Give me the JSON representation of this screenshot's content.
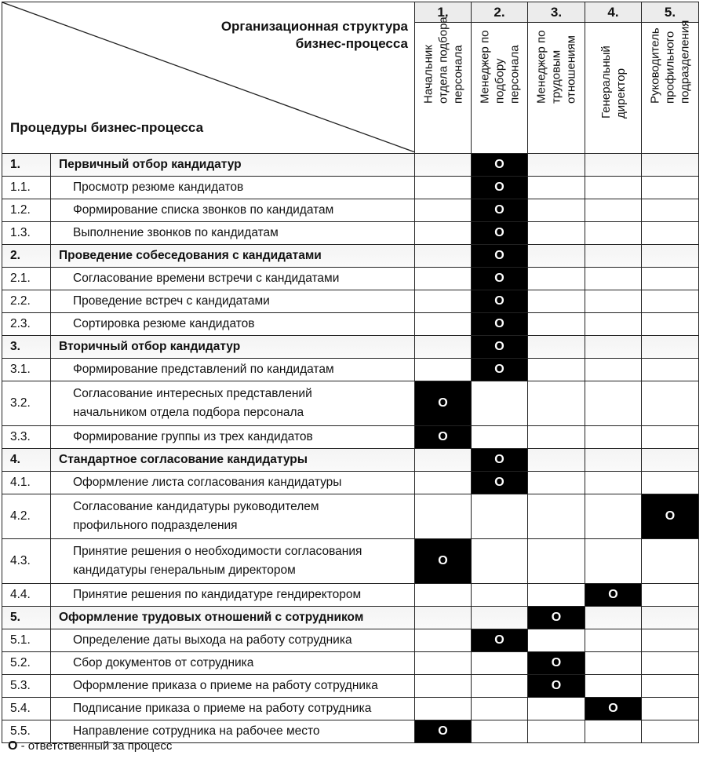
{
  "header": {
    "org_title": "Организационная структура\nбизнес-процесса",
    "proc_title": "Процедуры бизнес-процесса",
    "columns": [
      {
        "num": "1.",
        "name": "Начальник\nотдела подбора\nперсонала"
      },
      {
        "num": "2.",
        "name": "Менеджер по\nподбору\nперсонала"
      },
      {
        "num": "3.",
        "name": "Менеджер по\nтрудовым\nотношениям"
      },
      {
        "num": "4.",
        "name": "Генеральный\nдиректор"
      },
      {
        "num": "5.",
        "name": "Руководитель\nпрофильного\nподразделения"
      }
    ]
  },
  "mark": "O",
  "rows": [
    {
      "num": "1.",
      "text": "Первичный отбор кандидатур",
      "group": true,
      "owner": 2
    },
    {
      "num": "1.1.",
      "text": "Просмотр резюме кандидатов",
      "owner": 2
    },
    {
      "num": "1.2.",
      "text": "Формирование списка звонков по кандидатам",
      "owner": 2
    },
    {
      "num": "1.3.",
      "text": "Выполнение звонков по кандидатам",
      "owner": 2
    },
    {
      "num": "2.",
      "text": "Проведение собеседования с кандидатами",
      "group": true,
      "owner": 2
    },
    {
      "num": "2.1.",
      "text": "Согласование времени встречи с кандидатами",
      "owner": 2
    },
    {
      "num": "2.2.",
      "text": "Проведение встреч с кандидатами",
      "owner": 2
    },
    {
      "num": "2.3.",
      "text": "Сортировка резюме кандидатов",
      "owner": 2
    },
    {
      "num": "3.",
      "text": "Вторичный отбор кандидатур",
      "group": true,
      "owner": 2
    },
    {
      "num": "3.1.",
      "text": "Формирование представлений по кандидатам",
      "owner": 2
    },
    {
      "num": "3.2.",
      "text": "Согласование интересных представлений\nначальником отдела подбора персонала",
      "owner": 1,
      "tall": true
    },
    {
      "num": "3.3.",
      "text": "Формирование группы из трех кандидатов",
      "owner": 1
    },
    {
      "num": "4.",
      "text": "Стандартное согласование кандидатуры",
      "group": true,
      "owner": 2
    },
    {
      "num": "4.1.",
      "text": "Оформление листа согласования кандидатуры",
      "owner": 2
    },
    {
      "num": "4.2.",
      "text": "Согласование кандидатуры руководителем\nпрофильного подразделения",
      "owner": 5,
      "tall": true
    },
    {
      "num": "4.3.",
      "text": "Принятие решения о необходимости согласования\nкандидатуры генеральным директором",
      "owner": 1,
      "tall": true
    },
    {
      "num": "4.4.",
      "text": "Принятие решения по кандидатуре гендиректором",
      "owner": 4
    },
    {
      "num": "5.",
      "text": "Оформление трудовых отношений с сотрудником",
      "group": true,
      "owner": 3
    },
    {
      "num": "5.1.",
      "text": "Определение даты выхода на работу сотрудника",
      "owner": 2
    },
    {
      "num": "5.2.",
      "text": "Сбор документов от сотрудника",
      "owner": 3
    },
    {
      "num": "5.3.",
      "text": "Оформление приказа о приеме на работу сотрудника",
      "owner": 3
    },
    {
      "num": "5.4.",
      "text": "Подписание приказа о приеме на работу сотрудника",
      "owner": 4
    },
    {
      "num": "5.5.",
      "text": "Направление сотрудника на рабочее место",
      "owner": 1
    }
  ],
  "legend": {
    "mark": "О",
    "text": " - ответственный за процесс"
  }
}
